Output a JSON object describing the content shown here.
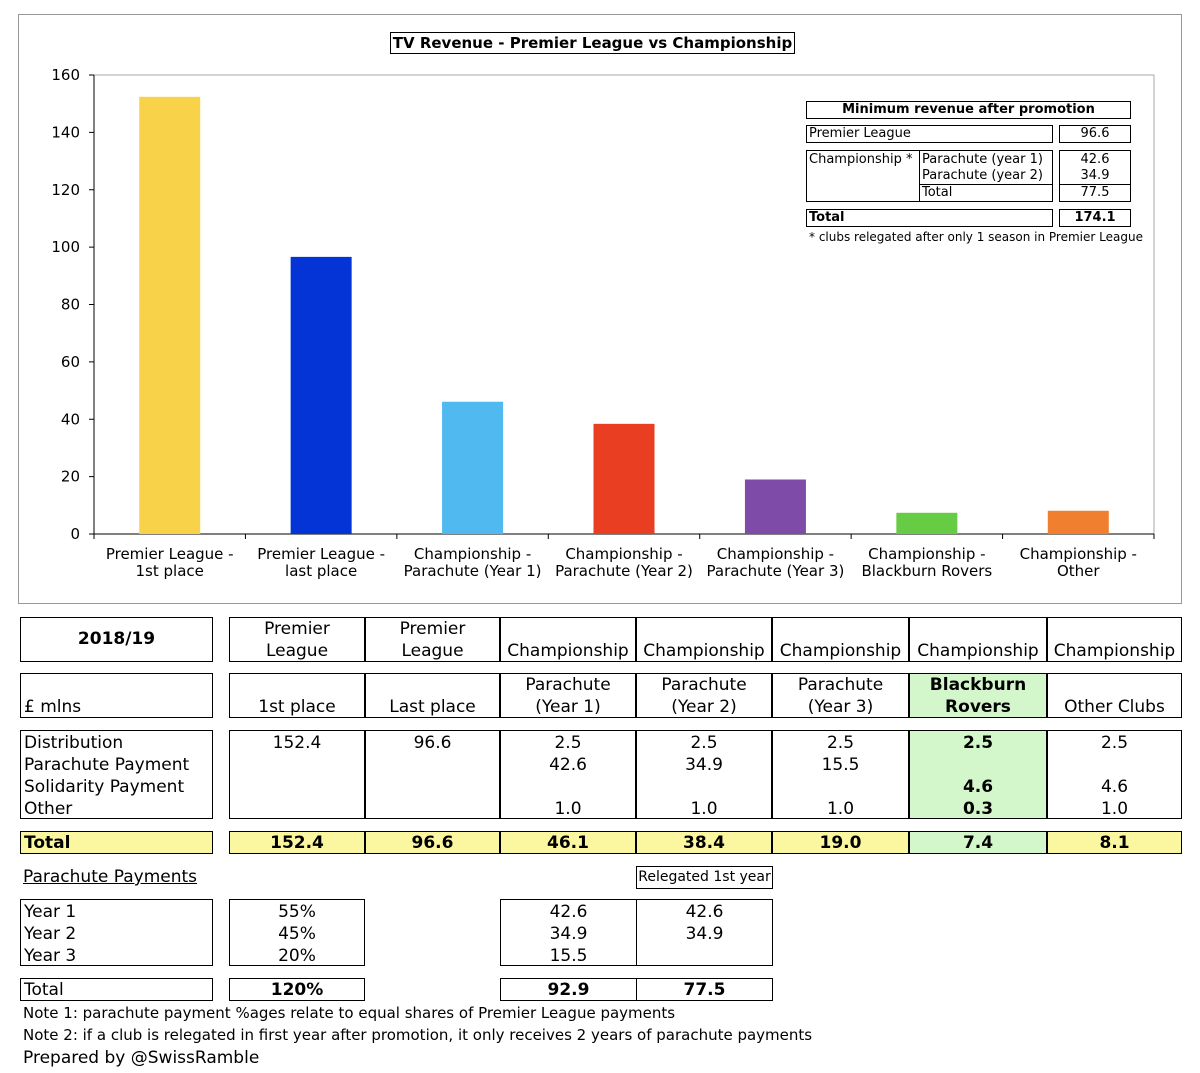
{
  "chart_data": {
    "type": "bar",
    "title": "TV Revenue - Premier League vs Championship",
    "categories": [
      "Premier League - 1st place",
      "Premier League - last place",
      "Championship - Parachute (Year 1)",
      "Championship - Parachute (Year 2)",
      "Championship - Parachute (Year 3)",
      "Championship - Blackburn Rovers",
      "Championship - Other"
    ],
    "category_lines": [
      [
        "Premier League -",
        "1st place"
      ],
      [
        "Premier League -",
        "last place"
      ],
      [
        "Championship -",
        "Parachute (Year 1)"
      ],
      [
        "Championship -",
        "Parachute (Year 2)"
      ],
      [
        "Championship -",
        "Parachute (Year 3)"
      ],
      [
        "Championship -",
        "Blackburn Rovers"
      ],
      [
        "Championship -",
        "Other"
      ]
    ],
    "values": [
      152.4,
      96.6,
      46.1,
      38.4,
      19.0,
      7.4,
      8.1
    ],
    "colors": [
      "#f8d34a",
      "#0433d6",
      "#4fb9f0",
      "#ea3e23",
      "#7e4ca8",
      "#66cc44",
      "#f08030"
    ],
    "ylim": [
      0,
      160
    ],
    "yticks": [
      0,
      20,
      40,
      60,
      80,
      100,
      120,
      140,
      160
    ],
    "grid": false,
    "legend": "none"
  },
  "inset": {
    "title": "Minimum revenue after promotion",
    "pl_label": "Premier League",
    "pl_value": "96.6",
    "ch_label": "Championship *",
    "p1_label": "Parachute (year 1)",
    "p1_value": "42.6",
    "p2_label": "Parachute (year 2)",
    "p2_value": "34.9",
    "sub_label": "Total",
    "sub_value": "77.5",
    "total_label": "Total",
    "total_value": "174.1",
    "footnote": "* clubs relegated after only 1 season in Premier League"
  },
  "table": {
    "season": "2018/19",
    "unit": "£ mlns",
    "col_top": [
      "Premier\nLeague",
      "Premier\nLeague",
      "Championship",
      "Championship",
      "Championship",
      "Championship",
      "Championship"
    ],
    "col_sub": [
      "1st place",
      "Last place",
      "Parachute\n(Year 1)",
      "Parachute\n(Year 2)",
      "Parachute\n(Year 3)",
      "Blackburn\nRovers",
      "Other Clubs"
    ],
    "row_labels": [
      "Distribution",
      "Parachute Payment",
      "Solidarity Payment",
      "Other"
    ],
    "rows": [
      [
        "152.4",
        "96.6",
        "2.5",
        "2.5",
        "2.5",
        "2.5",
        "2.5"
      ],
      [
        "",
        "",
        "42.6",
        "34.9",
        "15.5",
        "",
        ""
      ],
      [
        "",
        "",
        "",
        "",
        "",
        "4.6",
        "4.6"
      ],
      [
        "",
        "",
        "1.0",
        "1.0",
        "1.0",
        "0.3",
        "1.0"
      ]
    ],
    "total_label": "Total",
    "totals": [
      "152.4",
      "96.6",
      "46.1",
      "38.4",
      "19.0",
      "7.4",
      "8.1"
    ]
  },
  "parachute": {
    "heading": "Parachute Payments",
    "relegated_label": "Relegated 1st year",
    "years": [
      "Year 1",
      "Year 2",
      "Year 3"
    ],
    "pcts": [
      "55%",
      "45%",
      "20%"
    ],
    "standard": [
      "42.6",
      "34.9",
      "15.5"
    ],
    "relegated": [
      "42.6",
      "34.9",
      ""
    ],
    "total_label": "Total",
    "total_pct": "120%",
    "total_standard": "92.9",
    "total_relegated": "77.5"
  },
  "notes": [
    "Note 1: parachute payment %ages relate to equal shares of Premier League payments",
    "Note 2: if a club is relegated in first year after promotion, it only receives 2 years of parachute payments"
  ],
  "credit": "Prepared by @SwissRamble"
}
